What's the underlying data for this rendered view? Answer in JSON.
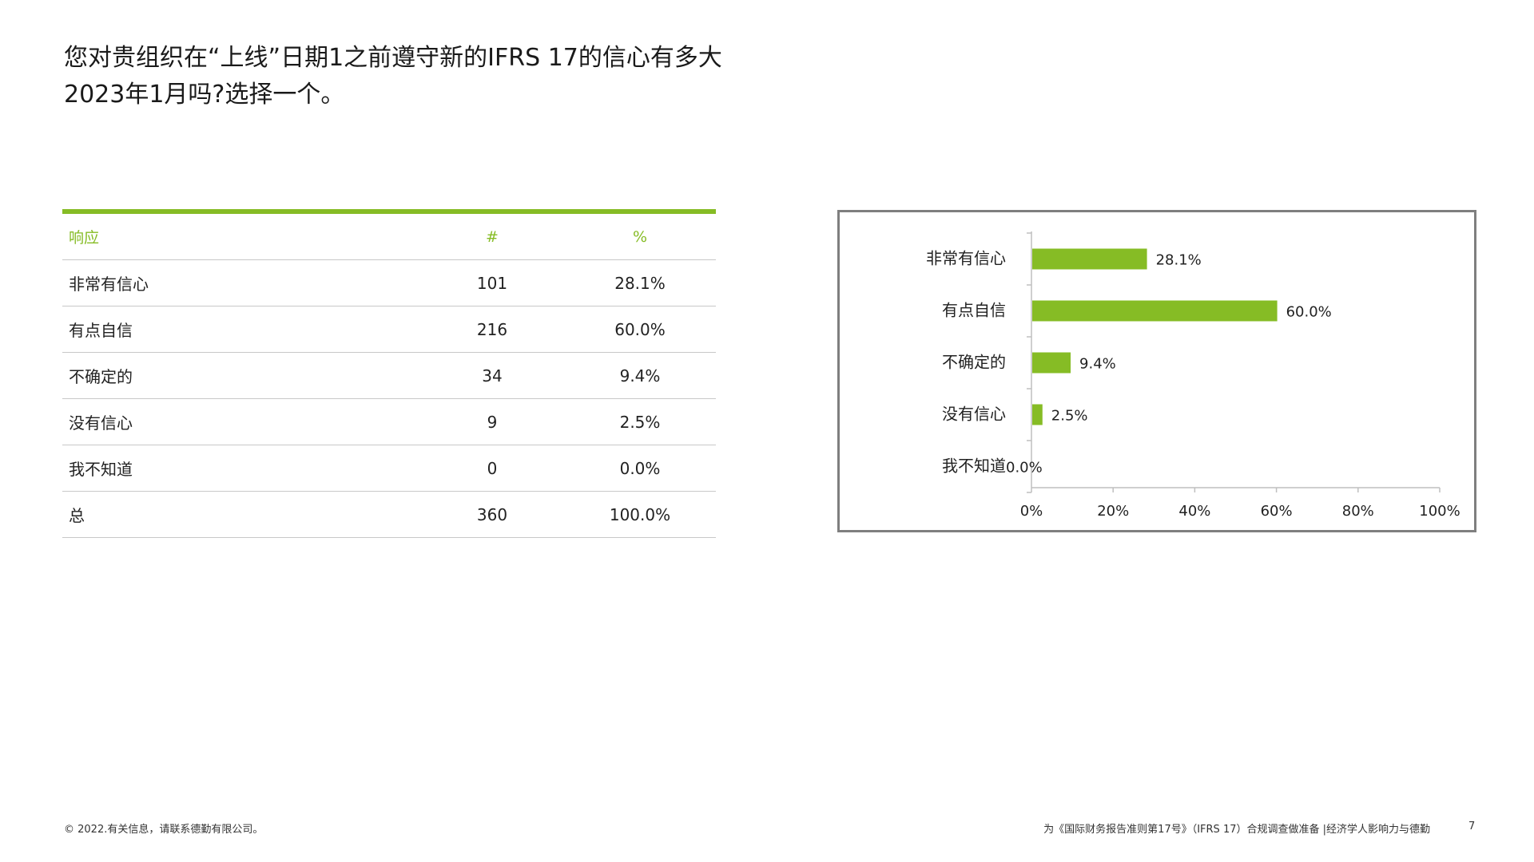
{
  "title": {
    "line1": "您对贵组织在“上线”日期1之前遵守新的IFRS 17的信心有多大",
    "line2": "2023年1月吗?选择一个。"
  },
  "table": {
    "headers": {
      "response": "响应",
      "count": "#",
      "percent": "%"
    },
    "rows": [
      {
        "response": "非常有信心",
        "count": "101",
        "percent": "28.1%"
      },
      {
        "response": "有点自信",
        "count": "216",
        "percent": "60.0%"
      },
      {
        "response": "不确定的",
        "count": "34",
        "percent": "9.4%"
      },
      {
        "response": "没有信心",
        "count": "9",
        "percent": "2.5%"
      },
      {
        "response": "我不知道",
        "count": "0",
        "percent": "0.0%"
      },
      {
        "response": "总",
        "count": "360",
        "percent": "100.0%"
      }
    ]
  },
  "chart_data": {
    "type": "bar",
    "orientation": "horizontal",
    "categories": [
      "非常有信心",
      "有点自信",
      "不确定的",
      "没有信心",
      "我不知道"
    ],
    "values": [
      28.1,
      60.0,
      9.4,
      2.5,
      0.0
    ],
    "data_labels": [
      "28.1%",
      "60.0%",
      "9.4%",
      "2.5%",
      "0.0%"
    ],
    "xlim": [
      0,
      100
    ],
    "xticks": [
      "0%",
      "20%",
      "40%",
      "60%",
      "80%",
      "100%"
    ],
    "title": "",
    "xlabel": "",
    "ylabel": "",
    "grid": false,
    "bar_color": "#86bc25"
  },
  "colors": {
    "accent": "#86bc25",
    "frame": "#7f7f7f",
    "rule": "#c8c8c8"
  },
  "footer": {
    "copyright": "© 2022.有关信息，请联系德勤有限公司。",
    "source": "为《国际财务报告准则第17号》（IFRS 17）合规调查做准备 |经济学人影响力与德勤",
    "page_number": "7"
  }
}
